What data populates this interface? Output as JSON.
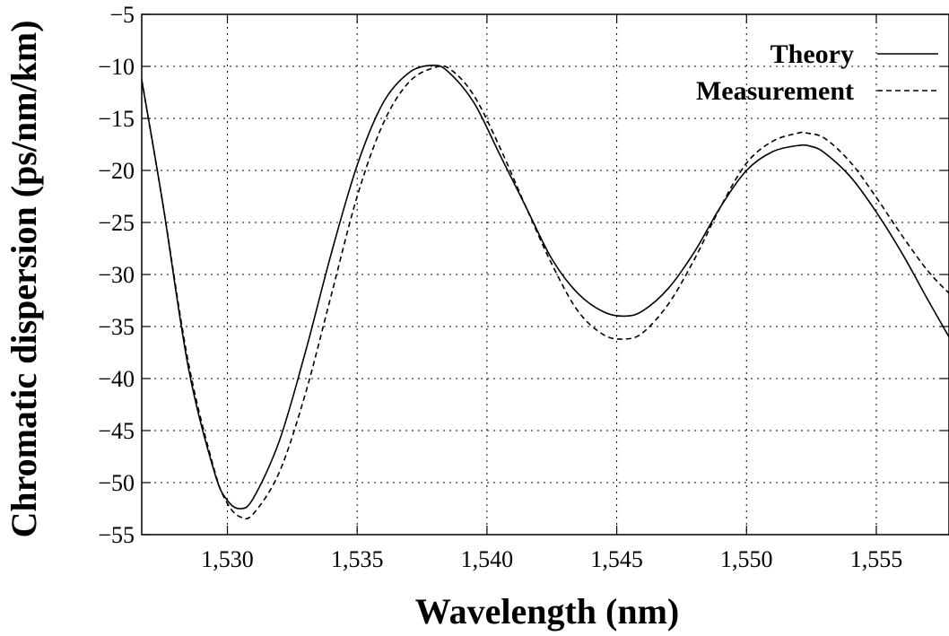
{
  "chart_data": {
    "type": "line",
    "xlabel": "Wavelength (nm)",
    "ylabel": "Chromatic dispersion (ps/nm/km)",
    "xlim": [
      1526.7,
      1557.8
    ],
    "ylim": [
      -55,
      -5
    ],
    "x_ticks": [
      1530,
      1535,
      1540,
      1545,
      1550,
      1555
    ],
    "x_tick_labels": [
      "1,530",
      "1,535",
      "1,540",
      "1,545",
      "1,550",
      "1,555"
    ],
    "y_ticks": [
      -55,
      -50,
      -45,
      -40,
      -35,
      -30,
      -25,
      -20,
      -15,
      -10,
      -5
    ],
    "y_tick_labels": [
      "−55",
      "−50",
      "−45",
      "−40",
      "−35",
      "−30",
      "−25",
      "−20",
      "−15",
      "−10",
      "−5"
    ],
    "grid": true,
    "legend_position": "top-right",
    "series": [
      {
        "name": "Theory",
        "style": "solid",
        "color": "#000000",
        "x": [
          1526.7,
          1527.5,
          1528.5,
          1529.5,
          1530.0,
          1530.5,
          1531.0,
          1532.0,
          1533.0,
          1534.0,
          1535.0,
          1536.0,
          1537.0,
          1537.9,
          1538.5,
          1539.5,
          1540.5,
          1541.5,
          1542.5,
          1543.5,
          1544.5,
          1545.3,
          1546.0,
          1547.0,
          1548.0,
          1549.0,
          1550.0,
          1551.0,
          1552.0,
          1552.5,
          1553.0,
          1554.0,
          1555.0,
          1556.0,
          1557.0,
          1557.8
        ],
        "y": [
          -11.3,
          -23.0,
          -39.0,
          -49.0,
          -51.7,
          -52.5,
          -51.5,
          -46.0,
          -37.5,
          -28.0,
          -19.5,
          -13.5,
          -10.6,
          -9.9,
          -10.5,
          -13.5,
          -18.5,
          -23.5,
          -28.5,
          -31.8,
          -33.6,
          -34.0,
          -33.5,
          -31.3,
          -27.8,
          -23.5,
          -20.0,
          -18.2,
          -17.6,
          -17.7,
          -18.3,
          -20.6,
          -24.0,
          -28.0,
          -32.5,
          -36.0
        ]
      },
      {
        "name": "Measurement",
        "style": "dashed",
        "color": "#000000",
        "x": [
          1526.7,
          1527.5,
          1528.5,
          1529.5,
          1530.0,
          1530.5,
          1531.0,
          1532.0,
          1533.0,
          1534.0,
          1535.0,
          1536.0,
          1537.0,
          1538.0,
          1538.6,
          1539.5,
          1540.5,
          1541.5,
          1542.5,
          1543.5,
          1544.5,
          1545.3,
          1546.0,
          1547.0,
          1548.0,
          1549.0,
          1550.0,
          1551.0,
          1552.0,
          1552.3,
          1553.0,
          1554.0,
          1555.0,
          1556.0,
          1557.0,
          1557.8
        ],
        "y": [
          -11.3,
          -23.0,
          -38.5,
          -48.8,
          -52.0,
          -53.3,
          -53.0,
          -49.0,
          -41.5,
          -32.0,
          -22.5,
          -15.5,
          -11.5,
          -10.1,
          -10.3,
          -12.8,
          -17.8,
          -23.5,
          -29.0,
          -33.5,
          -35.8,
          -36.2,
          -35.6,
          -32.8,
          -28.5,
          -23.5,
          -19.3,
          -17.2,
          -16.4,
          -16.4,
          -16.9,
          -19.2,
          -22.6,
          -26.3,
          -29.7,
          -31.8
        ]
      }
    ]
  }
}
